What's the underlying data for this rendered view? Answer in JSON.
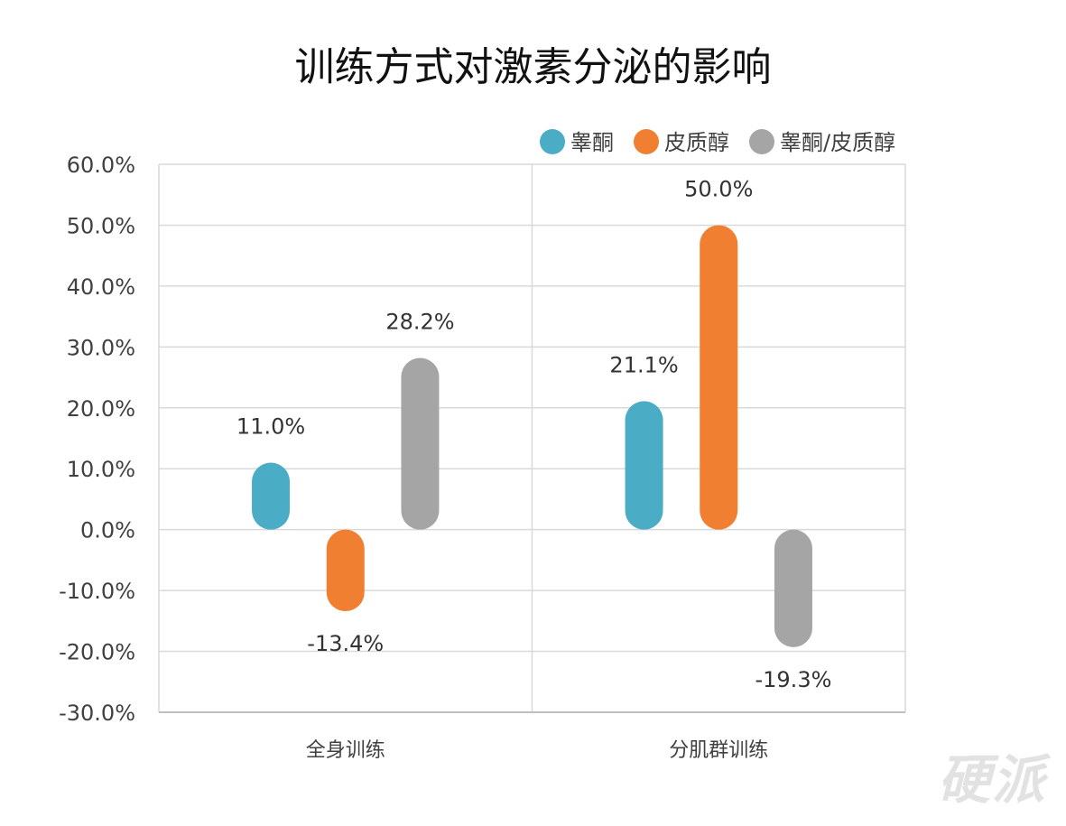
{
  "chart_data": {
    "type": "bar",
    "title": "训练方式对激素分泌的影响",
    "categories": [
      "全身训练",
      "分肌群训练"
    ],
    "series": [
      {
        "name": "睾酮",
        "color": "#4bacc6",
        "values": [
          11.0,
          21.1
        ],
        "labels": [
          "11.0%",
          "21.1%"
        ]
      },
      {
        "name": "皮质醇",
        "color": "#f07f31",
        "values": [
          -13.4,
          50.0
        ],
        "labels": [
          "-13.4%",
          "50.0%"
        ]
      },
      {
        "name": "睾酮/皮质醇",
        "color": "#a5a5a5",
        "values": [
          28.2,
          -19.3
        ],
        "labels": [
          "28.2%",
          "-19.3%"
        ]
      }
    ],
    "ylim": [
      -30,
      60
    ],
    "yticks": [
      60,
      50,
      40,
      30,
      20,
      10,
      0,
      -10,
      -20,
      -30
    ],
    "ytick_labels": [
      "60.0%",
      "50.0%",
      "40.0%",
      "30.0%",
      "20.0%",
      "10.0%",
      "0.0%",
      "-10.0%",
      "-20.0%",
      "-30.0%"
    ],
    "grid": true,
    "legend_position": "top-right"
  },
  "watermark": "硬派"
}
